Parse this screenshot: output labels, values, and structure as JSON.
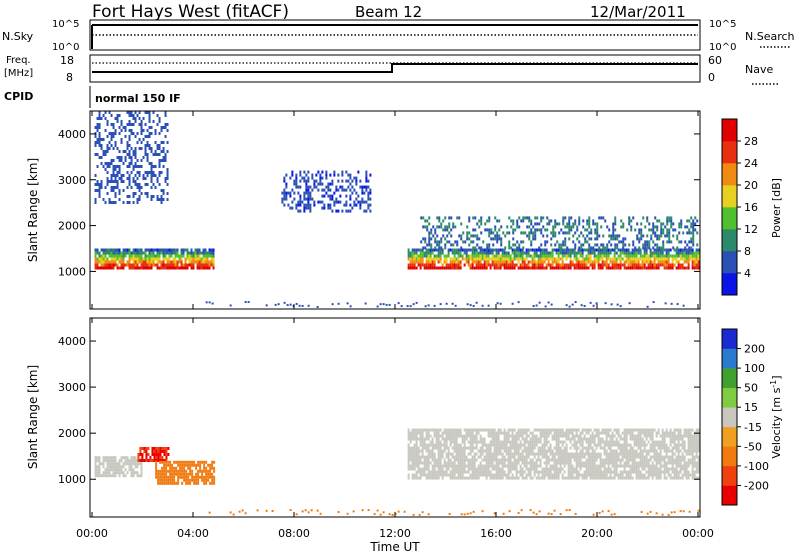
{
  "header": {
    "station": "Fort Hays West (fitACF)",
    "beam": "Beam 12",
    "date": "12/Mar/2011"
  },
  "noise_panel": {
    "left_label": "N.Sky",
    "left_ticks": [
      "10^5",
      "10^0"
    ],
    "right_label": "N.Search",
    "right_ticks": [
      "10^5",
      "10^0"
    ]
  },
  "freq_panel": {
    "left_label_top": "Freq.",
    "left_label_unit": "[MHz]",
    "left_ticks": [
      "18",
      "8"
    ],
    "right_label": "Nave",
    "right_ticks": [
      "60",
      "0"
    ]
  },
  "cpid": {
    "label": "CPID",
    "value": "normal 150 IF"
  },
  "x_axis": {
    "label": "Time UT",
    "ticks": [
      "00:00",
      "04:00",
      "08:00",
      "12:00",
      "16:00",
      "20:00",
      "00:00"
    ]
  },
  "range_axis": {
    "label": "Slant Range [km]",
    "ticks": [
      "1000",
      "2000",
      "3000",
      "4000"
    ]
  },
  "power_scale": {
    "label": "Power [dB]",
    "ticks": [
      "4",
      "8",
      "12",
      "16",
      "20",
      "24",
      "28"
    ],
    "colors": [
      "#0a14e6",
      "#2a4fb5",
      "#2c8a6a",
      "#50c030",
      "#e8d020",
      "#f08a10",
      "#e83010",
      "#e00000"
    ]
  },
  "velocity_scale": {
    "label": "Velocity [m s",
    "label_sup": "-1",
    "label_end": "]",
    "ticks": [
      "200",
      "100",
      "50",
      "15",
      "-15",
      "-50",
      "-100",
      "-200"
    ],
    "colors": [
      "#1a2ad0",
      "#2a7ad0",
      "#40a030",
      "#80cc40",
      "#c8c8c0",
      "#f0a020",
      "#f07a10",
      "#f04010",
      "#e80000"
    ]
  },
  "chart_data": {
    "type": "heatmap",
    "title": "Fort Hays West (fitACF)  Beam 12  12/Mar/2011",
    "xlabel": "Time UT",
    "ylabel": "Slant Range [km]",
    "x_ticks": [
      "00:00",
      "04:00",
      "08:00",
      "12:00",
      "16:00",
      "20:00",
      "00:00"
    ],
    "ylim_km": [
      180,
      4500
    ],
    "panels": [
      {
        "name": "Power [dB]",
        "clim": [
          0,
          30
        ],
        "echo_bands": [
          {
            "t_start_h": 0.1,
            "t_end_h": 4.8,
            "range_km": [
              1100,
              1500
            ],
            "power_db": 22
          },
          {
            "t_start_h": 0.1,
            "t_end_h": 3.0,
            "range_km": [
              2500,
              4500
            ],
            "power_db": 6
          },
          {
            "t_start_h": 12.5,
            "t_end_h": 24.0,
            "range_km": [
              1100,
              1500
            ],
            "power_db": 24
          },
          {
            "t_start_h": 13.0,
            "t_end_h": 24.0,
            "range_km": [
              1500,
              2200
            ],
            "power_db": 8
          },
          {
            "t_start_h": 7.5,
            "t_end_h": 11.0,
            "range_km": [
              2300,
              3200
            ],
            "power_db": 5
          }
        ]
      },
      {
        "name": "Velocity [m s^-1]",
        "clim": [
          -200,
          200
        ],
        "echo_bands": [
          {
            "t_start_h": 0.1,
            "t_end_h": 2.0,
            "range_km": [
              1100,
              1500
            ],
            "velocity_ms": 0
          },
          {
            "t_start_h": 1.8,
            "t_end_h": 3.0,
            "range_km": [
              1400,
              1700
            ],
            "velocity_ms": -200
          },
          {
            "t_start_h": 2.5,
            "t_end_h": 4.8,
            "range_km": [
              900,
              1400
            ],
            "velocity_ms": -70
          },
          {
            "t_start_h": 12.5,
            "t_end_h": 24.0,
            "range_km": [
              1000,
              2100
            ],
            "velocity_ms": 0
          }
        ]
      }
    ],
    "freq_mhz": {
      "before_12UT": 10.5,
      "after_12UT": 12.5
    },
    "nave": 30
  }
}
